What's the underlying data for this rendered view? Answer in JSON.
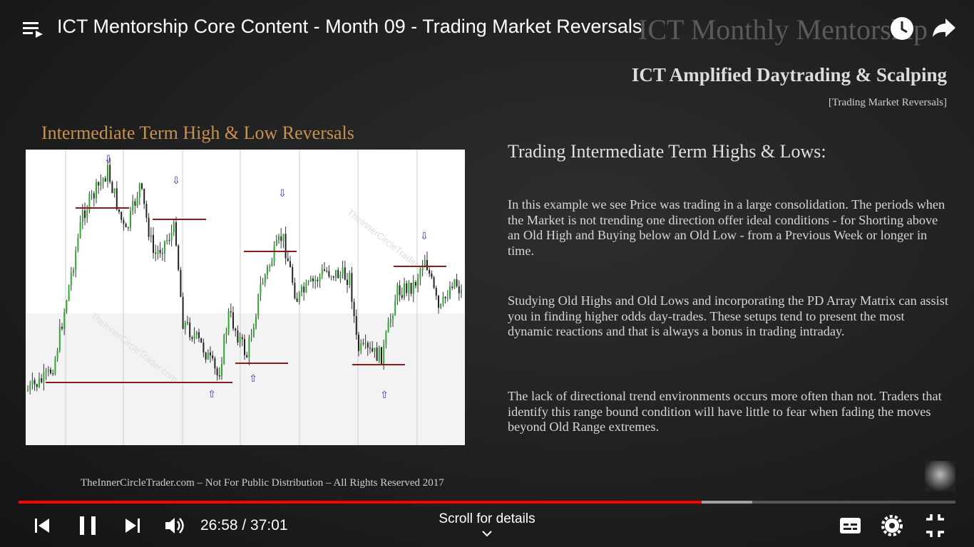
{
  "player": {
    "title": "ICT Mentorship Core Content - Month 09 - Trading Market Reversals",
    "time": "26:58 / 37:01",
    "scroll_hint": "Scroll for details"
  },
  "slide": {
    "watermark": "ICT Monthly Mentorship",
    "heading": "ICT Amplified Daytrading & Scalping",
    "subheading": "[Trading Market Reversals]",
    "chart_title": "Intermediate Term High & Low Reversals",
    "chart_watermark": "TheInnerCircleTrader.com",
    "section_title": "Trading Intermediate Term Highs & Lows:",
    "paragraphs": [
      "In this example we see Price was trading in a large consolidation.  The periods when the Market is not trending one direction offer ideal conditions - for Shorting above an Old High and Buying below an Old Low - from a Previous Week or longer in time.",
      "Studying Old Highs and Old Lows and incorporating the PD Array Matrix can assist you in finding higher odds day-trades.  These setups tend to present the most dynamic reactions and that is always a bonus in trading intraday.",
      "The lack of directional trend environments occurs more often than not. Traders that identify this range bound condition will have little to fear when fading the moves beyond Old Range extremes."
    ],
    "footer": "TheInnerCircleTrader.com – Not For Public Distribution – All Rights Reserved 2017"
  }
}
